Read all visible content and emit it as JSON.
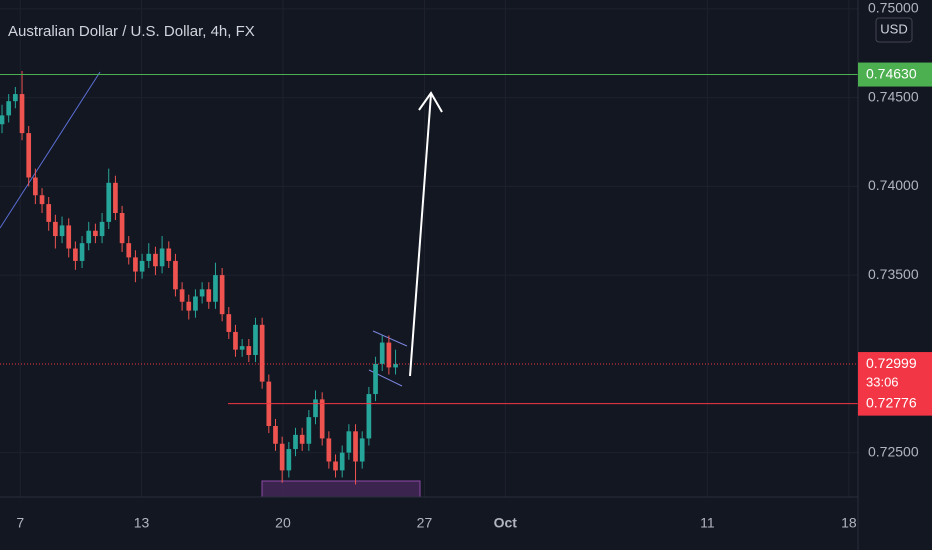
{
  "chart_data": {
    "type": "candlestick",
    "title": "Australian Dollar / U.S. Dollar, 4h, FX",
    "currency": "USD",
    "x": [
      6.1,
      6.43,
      6.76,
      7.09,
      7.42,
      7.75,
      8.08,
      8.41,
      8.74,
      9.07,
      9.4,
      9.73,
      10.06,
      10.39,
      10.72,
      11.05,
      11.38,
      11.71,
      12.04,
      12.37,
      12.7,
      13.03,
      13.36,
      13.69,
      14.02,
      14.35,
      14.68,
      15.01,
      15.34,
      15.67,
      16.0,
      16.33,
      16.66,
      16.99,
      17.32,
      17.65,
      17.98,
      18.31,
      18.64,
      18.97,
      19.3,
      19.63,
      19.96,
      20.29,
      20.62,
      20.95,
      21.28,
      21.61,
      21.94,
      22.27,
      22.6,
      22.93,
      23.26,
      23.59,
      23.92,
      24.25,
      24.58,
      24.91,
      25.24,
      25.57
    ],
    "open": [
      0.7435,
      0.744,
      0.7448,
      0.7452,
      0.743,
      0.7405,
      0.7395,
      0.739,
      0.738,
      0.7372,
      0.7378,
      0.7365,
      0.7358,
      0.7368,
      0.7375,
      0.7372,
      0.738,
      0.7402,
      0.7385,
      0.7368,
      0.736,
      0.7352,
      0.7358,
      0.7362,
      0.7355,
      0.7365,
      0.7358,
      0.7342,
      0.7335,
      0.733,
      0.7338,
      0.7342,
      0.7335,
      0.735,
      0.7328,
      0.7318,
      0.7308,
      0.731,
      0.7305,
      0.7322,
      0.729,
      0.7265,
      0.7255,
      0.724,
      0.7252,
      0.726,
      0.7255,
      0.727,
      0.728,
      0.7258,
      0.7245,
      0.724,
      0.725,
      0.7262,
      0.7245,
      0.7258,
      0.7283,
      0.73,
      0.7312,
      0.7298
    ],
    "high": [
      0.7446,
      0.7452,
      0.7456,
      0.7465,
      0.7434,
      0.741,
      0.7399,
      0.7394,
      0.7384,
      0.7383,
      0.7382,
      0.7369,
      0.7372,
      0.738,
      0.7379,
      0.7385,
      0.741,
      0.7406,
      0.7389,
      0.7372,
      0.7364,
      0.7362,
      0.7368,
      0.7366,
      0.7372,
      0.7369,
      0.7362,
      0.7346,
      0.7339,
      0.7342,
      0.7346,
      0.7346,
      0.7357,
      0.7354,
      0.7332,
      0.7322,
      0.7314,
      0.7314,
      0.7326,
      0.7326,
      0.7294,
      0.7269,
      0.7259,
      0.7256,
      0.7264,
      0.7264,
      0.7274,
      0.7285,
      0.7284,
      0.7262,
      0.7249,
      0.7254,
      0.7266,
      0.7266,
      0.7262,
      0.7287,
      0.7304,
      0.7316,
      0.7316,
      0.7308
    ],
    "low": [
      0.743,
      0.7436,
      0.7444,
      0.7426,
      0.74,
      0.739,
      0.7385,
      0.7375,
      0.7365,
      0.7368,
      0.736,
      0.7353,
      0.7354,
      0.7364,
      0.7368,
      0.7368,
      0.7376,
      0.7381,
      0.7363,
      0.7356,
      0.7346,
      0.7348,
      0.7354,
      0.735,
      0.7351,
      0.7354,
      0.7338,
      0.733,
      0.7325,
      0.7326,
      0.7334,
      0.7331,
      0.7331,
      0.7324,
      0.7314,
      0.7304,
      0.7304,
      0.7301,
      0.7301,
      0.7286,
      0.7261,
      0.7251,
      0.7233,
      0.7236,
      0.7248,
      0.7251,
      0.7251,
      0.7266,
      0.7254,
      0.7241,
      0.7236,
      0.7236,
      0.7246,
      0.7232,
      0.7241,
      0.7254,
      0.7279,
      0.7296,
      0.7294,
      0.7294
    ],
    "close": [
      0.744,
      0.7448,
      0.7452,
      0.743,
      0.7405,
      0.7395,
      0.739,
      0.738,
      0.7372,
      0.7378,
      0.7365,
      0.7358,
      0.7368,
      0.7375,
      0.7372,
      0.738,
      0.7402,
      0.7385,
      0.7368,
      0.736,
      0.7352,
      0.7358,
      0.7362,
      0.7355,
      0.7365,
      0.7358,
      0.7342,
      0.7335,
      0.733,
      0.7338,
      0.7342,
      0.7335,
      0.735,
      0.7328,
      0.7318,
      0.7308,
      0.731,
      0.7305,
      0.7322,
      0.729,
      0.7265,
      0.7255,
      0.724,
      0.7252,
      0.726,
      0.7255,
      0.727,
      0.728,
      0.7258,
      0.7245,
      0.724,
      0.725,
      0.7262,
      0.7245,
      0.7258,
      0.7283,
      0.73,
      0.7312,
      0.7298,
      0.72999
    ],
    "up_color": "#26a69a",
    "down_color": "#ef5350",
    "xlim": [
      6,
      48.45
    ],
    "xticks": [
      7,
      13,
      20,
      27,
      {
        "value": 31,
        "label": "Oct"
      },
      {
        "value": 41,
        "label": "11"
      },
      {
        "value": 48,
        "label": "18"
      }
    ],
    "ylim": [
      0.7225,
      0.7505
    ],
    "yticks": [
      {
        "value": 0.725,
        "label": "0.72500"
      },
      {
        "value": 0.735,
        "label": "0.73500"
      },
      {
        "value": 0.74,
        "label": "0.74000"
      },
      {
        "value": 0.745,
        "label": "0.74500"
      },
      {
        "value": 0.75,
        "label": "0.75000"
      }
    ],
    "grid": true,
    "price_lines": [
      {
        "value": 0.7463,
        "label": "0.74630",
        "color": "#4caf50"
      },
      {
        "value": 0.72776,
        "label": "0.72776",
        "color": "#f23645"
      }
    ],
    "last_price": 0.72999,
    "last_price_color": "#f23645",
    "countdown": "33:06"
  }
}
